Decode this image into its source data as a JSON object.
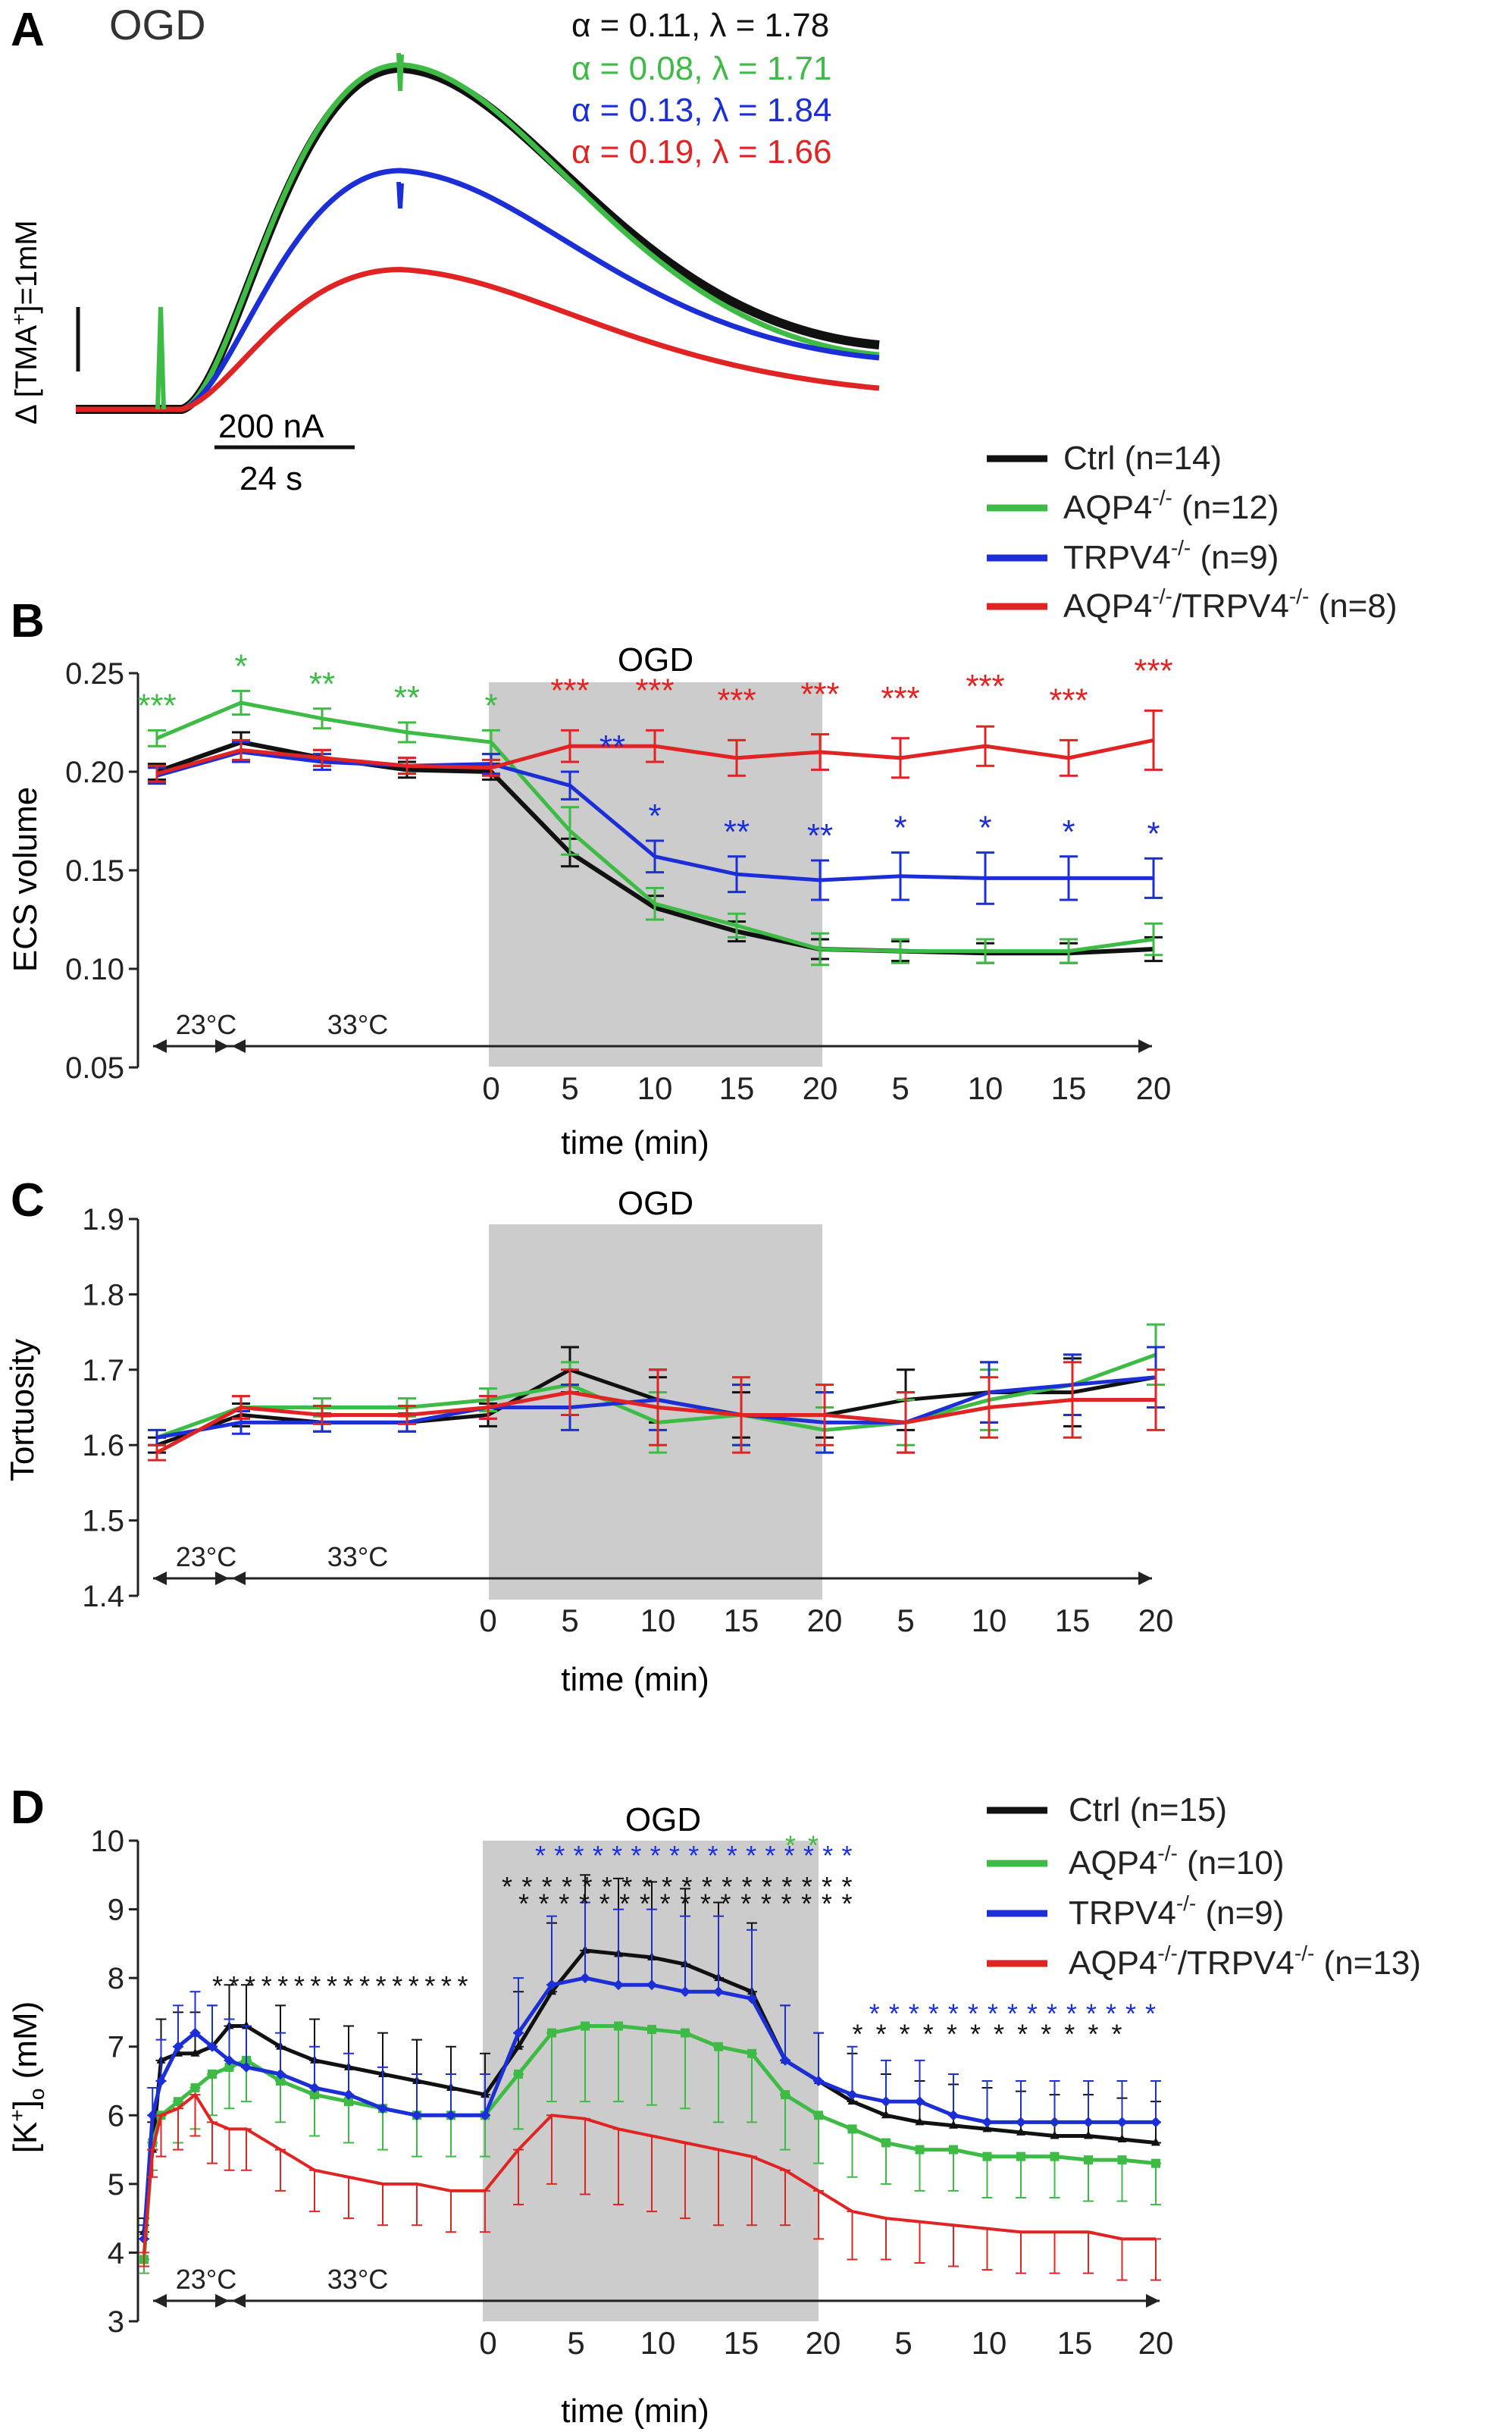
{
  "colors": {
    "Ctrl": "#111111",
    "AQP4": "#3dbb45",
    "TRPV4": "#1c2fd6",
    "DKO": "#e02424",
    "shade": "#cccccc",
    "axis": "#222222"
  },
  "chart_data": [
    {
      "panel_letter": "A",
      "type": "line",
      "title": "OGD",
      "ylabel_prefix": "Δ [TMA",
      "ylabel_sup": "+",
      "ylabel_suffix": "]=1mM",
      "scale_bar_x": "24 s",
      "scale_bar_y": "200 nA",
      "fit_labels": [
        {
          "series": "Ctrl",
          "text": "α = 0.11, λ = 1.78"
        },
        {
          "series": "AQP4",
          "text": "α = 0.08, λ = 1.71"
        },
        {
          "series": "TRPV4",
          "text": "α = 0.13, λ = 1.84"
        },
        {
          "series": "DKO",
          "text": "α = 0.19, λ = 1.66"
        }
      ],
      "traces": [
        {
          "series": "Ctrl",
          "peak": 1.0,
          "end": 0.0
        },
        {
          "series": "AQP4",
          "peak": 1.01,
          "end": 0.0
        },
        {
          "series": "TRPV4",
          "peak": 0.7,
          "end": 0.0
        },
        {
          "series": "DKO",
          "peak": 0.41,
          "end": 0.0
        }
      ]
    },
    {
      "panel_letter": "B",
      "type": "line",
      "ylabel": "ECS volume",
      "xlabel": "time (min)",
      "ylim": [
        0.05,
        0.25
      ],
      "yticks": [
        "0.25",
        "0.20",
        "0.15",
        "0.10",
        "0.05"
      ],
      "shade_label": "OGD",
      "xticks": [
        "0",
        "5",
        "10",
        "15",
        "20",
        "5",
        "10",
        "15",
        "20"
      ],
      "temp_labels": [
        "23°C",
        "33°C"
      ],
      "legend": [
        {
          "series": "Ctrl",
          "label": "Ctrl (n=14)"
        },
        {
          "series": "AQP4",
          "label": "AQP4",
          "sup": "-/-",
          "rest": " (n=12)"
        },
        {
          "series": "TRPV4",
          "label": "TRPV4",
          "sup": "-/-",
          "rest": " (n=9)"
        },
        {
          "series": "DKO",
          "label": "AQP4",
          "sup": "-/-",
          "mid": "/TRPV4",
          "sup2": "-/-",
          "rest": " (n=8)"
        }
      ],
      "x": [
        -4,
        -3,
        -2,
        -1,
        0,
        1,
        2,
        3,
        4,
        5,
        6,
        7,
        8
      ],
      "series": [
        {
          "name": "Ctrl",
          "values": [
            0.2,
            0.215,
            0.207,
            0.201,
            0.2,
            0.159,
            0.131,
            0.119,
            0.11,
            0.109,
            0.108,
            0.108,
            0.11
          ],
          "errors": [
            0.004,
            0.005,
            0.004,
            0.004,
            0.004,
            0.007,
            0.006,
            0.005,
            0.005,
            0.005,
            0.005,
            0.005,
            0.006
          ]
        },
        {
          "name": "AQP4",
          "values": [
            0.217,
            0.235,
            0.227,
            0.22,
            0.215,
            0.17,
            0.133,
            0.122,
            0.11,
            0.109,
            0.109,
            0.109,
            0.115
          ],
          "errors": [
            0.004,
            0.006,
            0.005,
            0.005,
            0.006,
            0.012,
            0.008,
            0.006,
            0.008,
            0.006,
            0.006,
            0.006,
            0.008
          ]
        },
        {
          "name": "TRPV4",
          "values": [
            0.198,
            0.21,
            0.205,
            0.203,
            0.204,
            0.193,
            0.157,
            0.148,
            0.145,
            0.147,
            0.146,
            0.146,
            0.146
          ],
          "errors": [
            0.004,
            0.005,
            0.004,
            0.004,
            0.005,
            0.007,
            0.008,
            0.009,
            0.01,
            0.012,
            0.013,
            0.011,
            0.01
          ]
        },
        {
          "name": "DKO",
          "values": [
            0.199,
            0.211,
            0.207,
            0.203,
            0.202,
            0.213,
            0.213,
            0.207,
            0.21,
            0.207,
            0.213,
            0.207,
            0.216
          ],
          "errors": [
            0.004,
            0.005,
            0.004,
            0.004,
            0.004,
            0.008,
            0.008,
            0.009,
            0.009,
            0.01,
            0.01,
            0.009,
            0.015
          ]
        }
      ],
      "significance": [
        {
          "series": "AQP4",
          "at": -4,
          "text": "***"
        },
        {
          "series": "AQP4",
          "at": -3,
          "text": "*"
        },
        {
          "series": "AQP4",
          "at": -2,
          "text": "**"
        },
        {
          "series": "AQP4",
          "at": -1,
          "text": "**"
        },
        {
          "series": "AQP4",
          "at": 0,
          "text": "*"
        },
        {
          "series": "DKO",
          "at": 1,
          "text": "***"
        },
        {
          "series": "DKO",
          "at": 2,
          "text": "***"
        },
        {
          "series": "DKO",
          "at": 3,
          "text": "***"
        },
        {
          "series": "DKO",
          "at": 4,
          "text": "***"
        },
        {
          "series": "DKO",
          "at": 5,
          "text": "***"
        },
        {
          "series": "DKO",
          "at": 6,
          "text": "***"
        },
        {
          "series": "DKO",
          "at": 7,
          "text": "***"
        },
        {
          "series": "DKO",
          "at": 8,
          "text": "***"
        },
        {
          "series": "TRPV4",
          "at": 1.45,
          "text": "**"
        },
        {
          "series": "TRPV4",
          "at": 2,
          "text": "*"
        },
        {
          "series": "TRPV4",
          "at": 3,
          "text": "**"
        },
        {
          "series": "TRPV4",
          "at": 4,
          "text": "**"
        },
        {
          "series": "TRPV4",
          "at": 5,
          "text": "*"
        },
        {
          "series": "TRPV4",
          "at": 6,
          "text": "*"
        },
        {
          "series": "TRPV4",
          "at": 7,
          "text": "*"
        },
        {
          "series": "TRPV4",
          "at": 8,
          "text": "*"
        }
      ]
    },
    {
      "panel_letter": "C",
      "type": "line",
      "ylabel": "Tortuosity",
      "xlabel": "time (min)",
      "ylim": [
        1.4,
        1.9
      ],
      "yticks": [
        "1.9",
        "1.8",
        "1.7",
        "1.6",
        "1.5",
        "1.4"
      ],
      "shade_label": "OGD",
      "xticks": [
        "0",
        "5",
        "10",
        "15",
        "20",
        "5",
        "10",
        "15",
        "20"
      ],
      "temp_labels": [
        "23°C",
        "33°C"
      ],
      "x": [
        -4,
        -3,
        -2,
        -1,
        0,
        1,
        2,
        3,
        4,
        5,
        6,
        7,
        8
      ],
      "series": [
        {
          "name": "Ctrl",
          "values": [
            1.6,
            1.64,
            1.63,
            1.63,
            1.64,
            1.7,
            1.66,
            1.64,
            1.64,
            1.66,
            1.67,
            1.67,
            1.69
          ],
          "errors": [
            0.01,
            0.015,
            0.012,
            0.012,
            0.015,
            0.03,
            0.03,
            0.03,
            0.03,
            0.04,
            0.04,
            0.045,
            0.04
          ]
        },
        {
          "name": "AQP4",
          "values": [
            1.61,
            1.65,
            1.65,
            1.65,
            1.66,
            1.68,
            1.63,
            1.64,
            1.62,
            1.63,
            1.66,
            1.68,
            1.72
          ],
          "errors": [
            0.01,
            0.015,
            0.012,
            0.012,
            0.015,
            0.03,
            0.04,
            0.04,
            0.03,
            0.03,
            0.04,
            0.04,
            0.04
          ]
        },
        {
          "name": "TRPV4",
          "values": [
            1.61,
            1.63,
            1.63,
            1.63,
            1.65,
            1.65,
            1.66,
            1.64,
            1.63,
            1.63,
            1.67,
            1.68,
            1.69
          ],
          "errors": [
            0.01,
            0.015,
            0.012,
            0.012,
            0.015,
            0.03,
            0.04,
            0.04,
            0.04,
            0.04,
            0.04,
            0.04,
            0.04
          ]
        },
        {
          "name": "DKO",
          "values": [
            1.59,
            1.65,
            1.64,
            1.64,
            1.65,
            1.67,
            1.65,
            1.64,
            1.64,
            1.63,
            1.65,
            1.66,
            1.66
          ],
          "errors": [
            0.01,
            0.015,
            0.012,
            0.012,
            0.015,
            0.03,
            0.05,
            0.05,
            0.04,
            0.04,
            0.04,
            0.05,
            0.04
          ]
        }
      ]
    },
    {
      "panel_letter": "D",
      "type": "line",
      "ylabel_prefix": "[K",
      "ylabel_sup": "+",
      "ylabel_suffix": "]",
      "ylabel_sub": "o",
      "ylabel_unit": " (mM)",
      "xlabel": "time (min)",
      "ylim": [
        3,
        10
      ],
      "yticks": [
        "10",
        "9",
        "8",
        "7",
        "6",
        "5",
        "4",
        "3"
      ],
      "shade_label": "OGD",
      "xticks": [
        "0",
        "5",
        "10",
        "15",
        "20",
        "5",
        "10",
        "15",
        "20"
      ],
      "temp_labels": [
        "23°C",
        "33°C"
      ],
      "legend": [
        {
          "series": "Ctrl",
          "label": "Ctrl (n=15)"
        },
        {
          "series": "AQP4",
          "label": "AQP4",
          "sup": "-/-",
          "rest": " (n=10)"
        },
        {
          "series": "TRPV4",
          "label": "TRPV4",
          "sup": "-/-",
          "rest": " (n=9)"
        },
        {
          "series": "DKO",
          "label": "AQP4",
          "sup": "-/-",
          "mid": "/TRPV4",
          "sup2": "-/-",
          "rest": " (n=13)"
        }
      ],
      "x": [
        -20,
        -19.5,
        -19,
        -18,
        -17,
        -16,
        -15,
        -14,
        -12,
        -10,
        -8,
        -6,
        -4,
        -2,
        0,
        2,
        4,
        6,
        8,
        10,
        12,
        14,
        16,
        18,
        20,
        22,
        24,
        26,
        28,
        30,
        32,
        34,
        36,
        38,
        40
      ],
      "series": [
        {
          "name": "Ctrl",
          "values": [
            4.3,
            5.5,
            6.8,
            6.9,
            6.9,
            7.0,
            7.3,
            7.3,
            7.0,
            6.8,
            6.7,
            6.6,
            6.5,
            6.4,
            6.3,
            7.0,
            7.8,
            8.4,
            8.35,
            8.3,
            8.2,
            8.0,
            7.8,
            6.8,
            6.5,
            6.2,
            6.0,
            5.9,
            5.85,
            5.8,
            5.75,
            5.7,
            5.7,
            5.65,
            5.6
          ],
          "errors": [
            0.2,
            0.4,
            0.6,
            0.6,
            0.6,
            0.6,
            0.6,
            0.6,
            0.6,
            0.6,
            0.6,
            0.6,
            0.6,
            0.6,
            0.6,
            0.8,
            1.0,
            1.1,
            1.1,
            1.1,
            1.1,
            1.1,
            1.0,
            0.8,
            0.7,
            0.7,
            0.6,
            0.6,
            0.6,
            0.6,
            0.6,
            0.6,
            0.6,
            0.6,
            0.6
          ]
        },
        {
          "name": "AQP4",
          "values": [
            3.9,
            5.6,
            6.0,
            6.2,
            6.4,
            6.6,
            6.7,
            6.8,
            6.5,
            6.3,
            6.2,
            6.1,
            6.0,
            6.0,
            6.0,
            6.6,
            7.2,
            7.3,
            7.3,
            7.25,
            7.2,
            7.0,
            6.9,
            6.3,
            6.0,
            5.8,
            5.6,
            5.5,
            5.5,
            5.4,
            5.4,
            5.4,
            5.35,
            5.35,
            5.3
          ],
          "errors": [
            0.2,
            0.4,
            0.6,
            0.6,
            0.6,
            0.6,
            0.6,
            0.6,
            0.6,
            0.6,
            0.6,
            0.6,
            0.6,
            0.6,
            0.6,
            0.8,
            1.0,
            1.1,
            1.1,
            1.1,
            1.1,
            1.1,
            1.0,
            0.8,
            0.7,
            0.7,
            0.6,
            0.6,
            0.6,
            0.6,
            0.6,
            0.6,
            0.6,
            0.6,
            0.6
          ]
        },
        {
          "name": "TRPV4",
          "values": [
            4.2,
            6.0,
            6.5,
            7.0,
            7.2,
            7.0,
            6.8,
            6.7,
            6.6,
            6.4,
            6.3,
            6.1,
            6.0,
            6.0,
            6.0,
            7.2,
            7.9,
            8.0,
            7.9,
            7.9,
            7.8,
            7.8,
            7.7,
            6.8,
            6.5,
            6.3,
            6.2,
            6.2,
            6.0,
            5.9,
            5.9,
            5.9,
            5.9,
            5.9,
            5.9
          ],
          "errors": [
            0.2,
            0.4,
            0.6,
            0.6,
            0.6,
            0.6,
            0.6,
            0.6,
            0.6,
            0.6,
            0.6,
            0.6,
            0.6,
            0.6,
            0.6,
            0.8,
            1.0,
            1.1,
            1.1,
            1.1,
            1.1,
            1.1,
            1.0,
            0.8,
            0.7,
            0.7,
            0.6,
            0.6,
            0.6,
            0.6,
            0.6,
            0.6,
            0.6,
            0.6,
            0.6
          ]
        },
        {
          "name": "DKO",
          "values": [
            4.0,
            5.5,
            6.0,
            6.1,
            6.3,
            5.9,
            5.8,
            5.8,
            5.5,
            5.2,
            5.1,
            5.0,
            5.0,
            4.9,
            4.9,
            5.5,
            6.0,
            5.95,
            5.8,
            5.7,
            5.6,
            5.5,
            5.4,
            5.2,
            4.9,
            4.6,
            4.5,
            4.45,
            4.4,
            4.35,
            4.3,
            4.3,
            4.3,
            4.2,
            4.2
          ],
          "errors": [
            0.2,
            0.4,
            0.6,
            0.6,
            0.6,
            0.6,
            0.6,
            0.6,
            0.6,
            0.6,
            0.6,
            0.6,
            0.6,
            0.6,
            0.6,
            0.8,
            1.0,
            1.1,
            1.1,
            1.1,
            1.1,
            1.1,
            1.0,
            0.8,
            0.7,
            0.7,
            0.6,
            0.6,
            0.6,
            0.6,
            0.6,
            0.6,
            0.6,
            0.6,
            0.6
          ]
        }
      ],
      "significance": [
        {
          "series": "Ctrl",
          "at": -16,
          "to": -1,
          "level": 7.9,
          "text": "* * * * * * * * * * * * * * * *"
        },
        {
          "series": "Ctrl",
          "at": 1,
          "to": 22,
          "level": 9.35,
          "text": "* * * * * * * * * * * * * * * * * *"
        },
        {
          "series": "Ctrl",
          "at": 2,
          "to": 22,
          "level": 9.1,
          "text": "* * * * * * * * * * * * * * * * *"
        },
        {
          "series": "Ctrl",
          "at": 22,
          "to": 38,
          "level": 7.2,
          "text": "* * * * * * * * * * * *"
        },
        {
          "series": "TRPV4",
          "at": 3,
          "to": 22,
          "level": 9.8,
          "text": "* * * * * * * * * * * * * * * * *"
        },
        {
          "series": "TRPV4",
          "at": 23,
          "to": 40,
          "level": 7.5,
          "text": "* * * * * * * * * * * * * * *"
        },
        {
          "series": "AQP4",
          "at": 18,
          "to": 20,
          "level": 9.95,
          "text": "*   *"
        }
      ]
    }
  ]
}
